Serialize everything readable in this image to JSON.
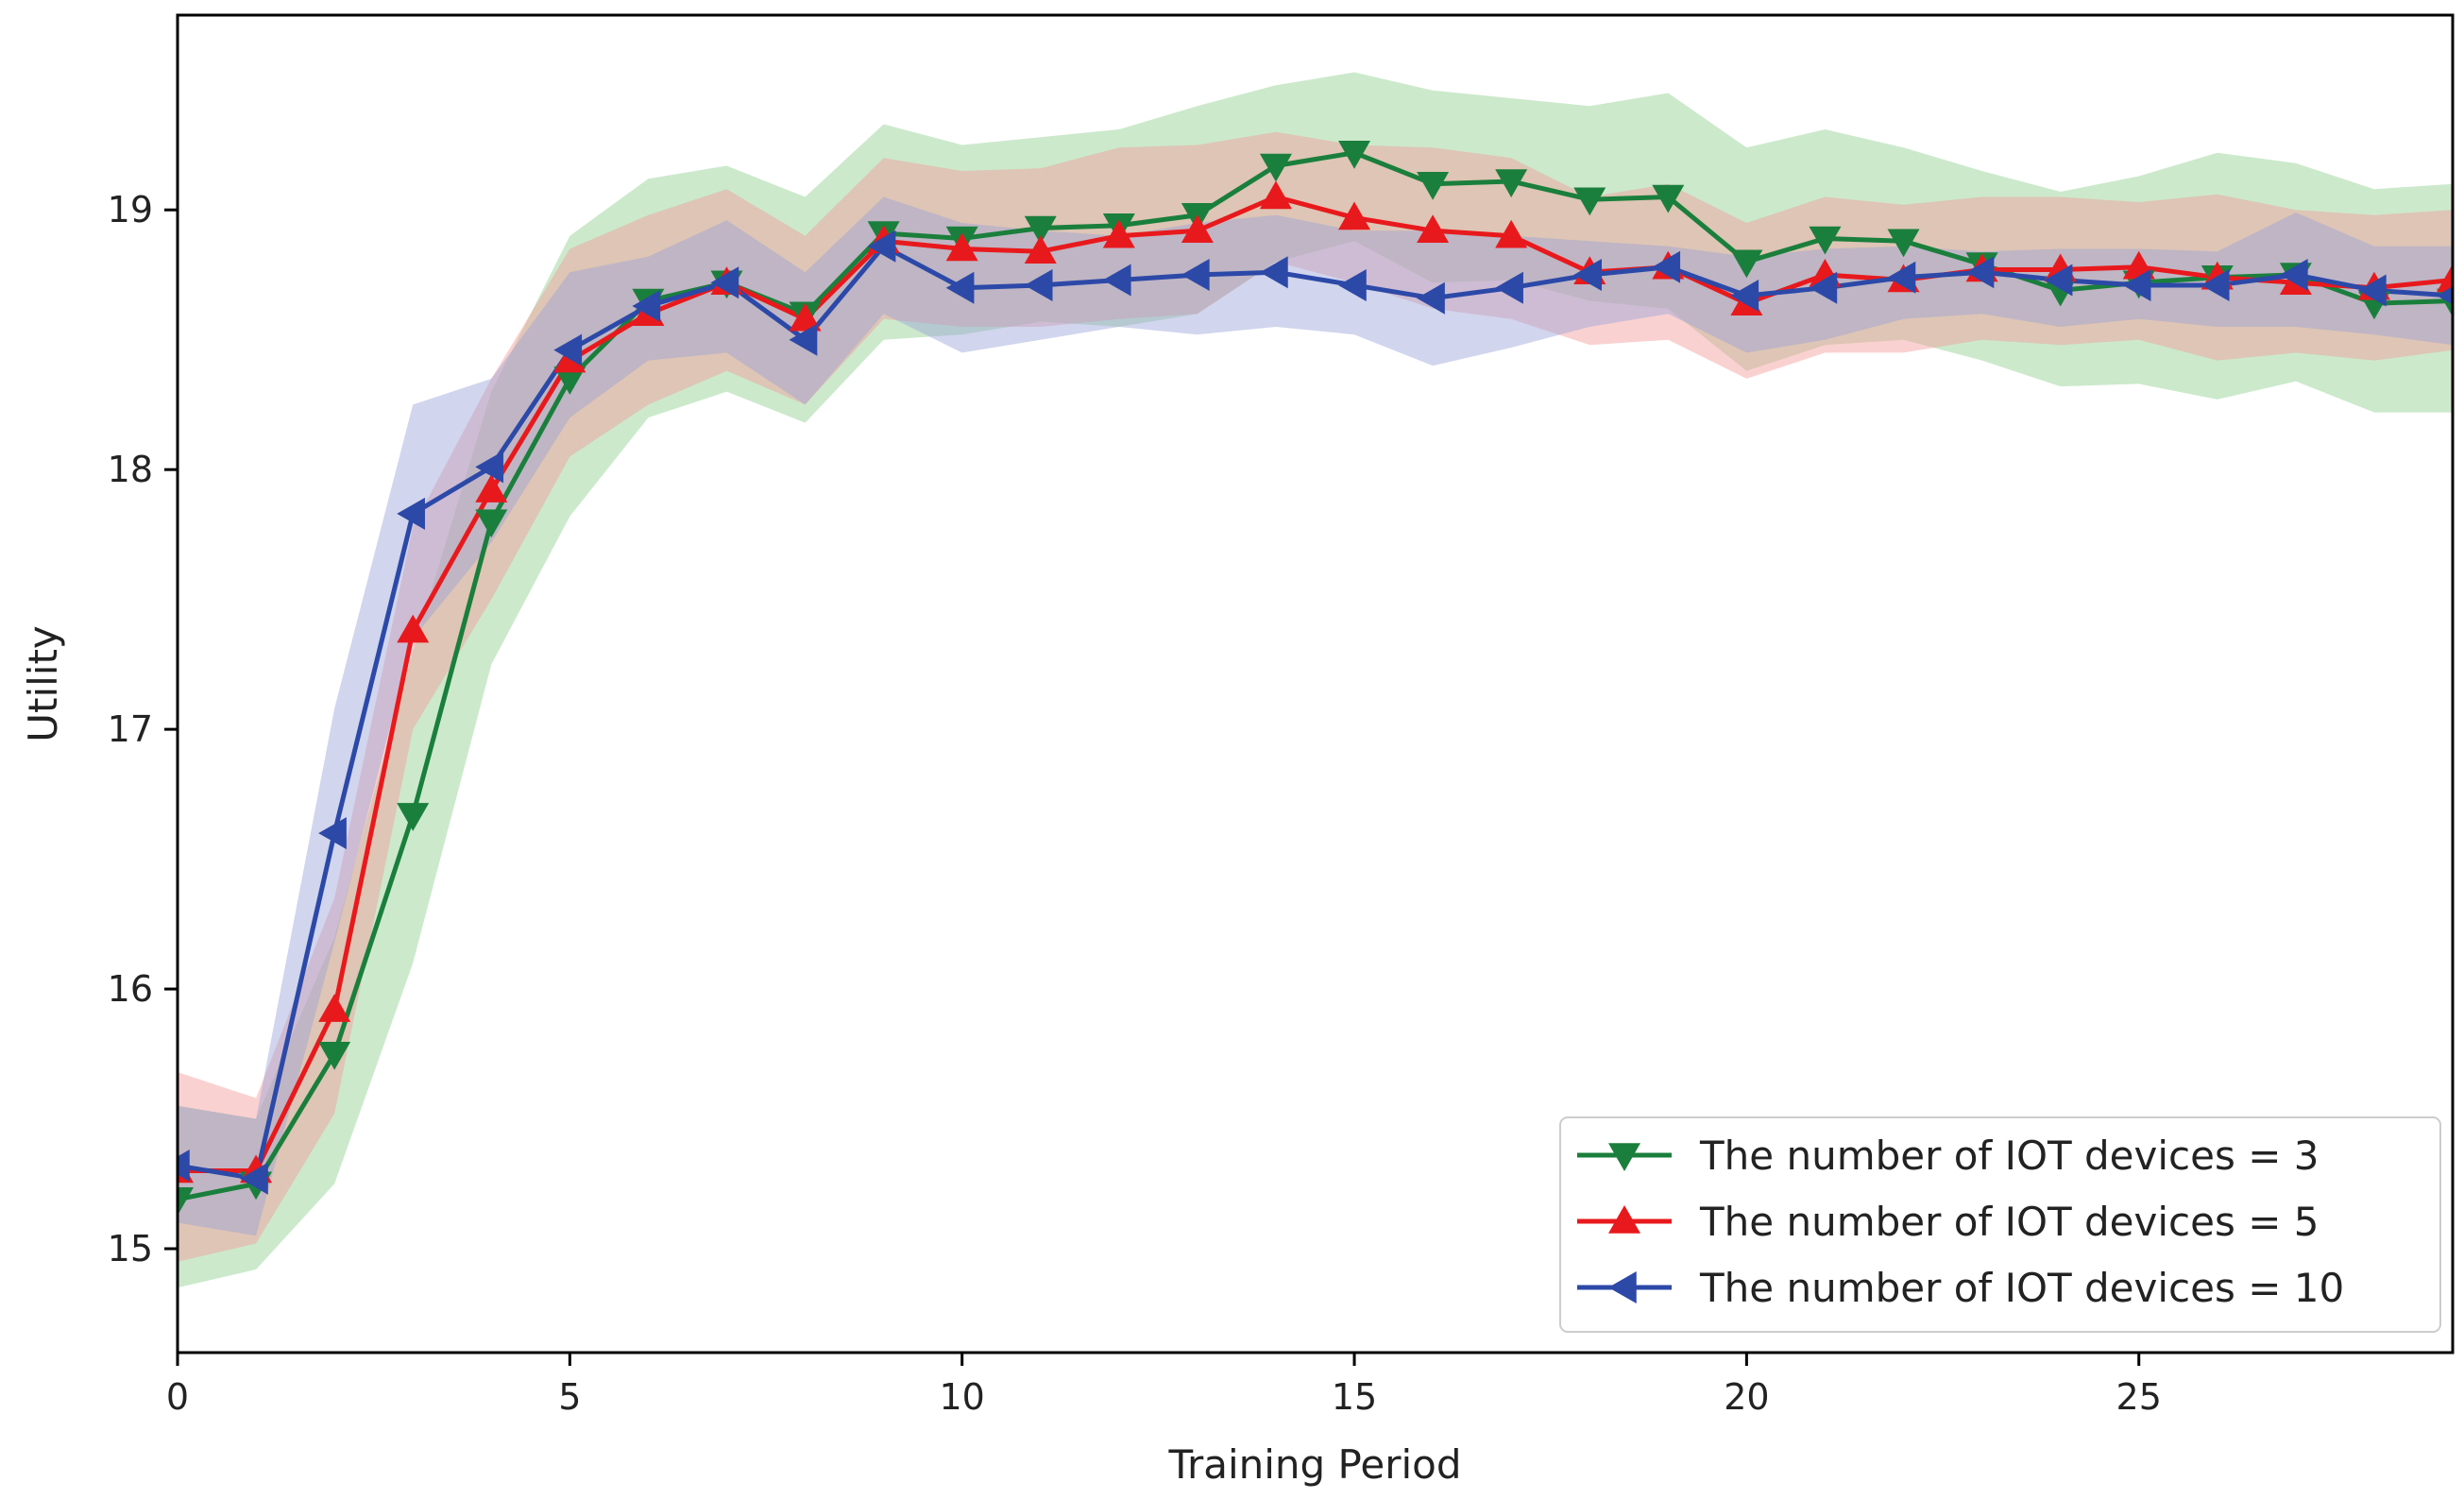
{
  "chart_data": {
    "type": "line",
    "title": "",
    "xlabel": "Training Period",
    "ylabel": "Utility",
    "xlim": [
      0,
      29
    ],
    "ylim": [
      14.6,
      19.75
    ],
    "xticks": [
      0,
      5,
      10,
      15,
      20,
      25
    ],
    "yticks": [
      15,
      16,
      17,
      18,
      19
    ],
    "legend_position": "bottom-right",
    "x": [
      0,
      1,
      2,
      3,
      4,
      5,
      6,
      7,
      8,
      9,
      10,
      11,
      12,
      13,
      14,
      15,
      16,
      17,
      18,
      19,
      20,
      21,
      22,
      23,
      24,
      25,
      26,
      27,
      28,
      29
    ],
    "series": [
      {
        "name": "The number of IOT devices = 3",
        "color": "#1a7f3c",
        "band_color": "#8fcf8f",
        "marker": "triangle-down",
        "values": [
          15.19,
          15.25,
          15.75,
          16.67,
          17.8,
          18.35,
          18.65,
          18.72,
          18.6,
          18.91,
          18.89,
          18.93,
          18.94,
          18.98,
          19.17,
          19.22,
          19.1,
          19.11,
          19.04,
          19.05,
          18.8,
          18.89,
          18.88,
          18.79,
          18.69,
          18.72,
          18.74,
          18.75,
          18.64,
          18.65
        ],
        "upper": [
          15.55,
          15.5,
          16.2,
          17.3,
          18.3,
          18.9,
          19.12,
          19.17,
          19.05,
          19.33,
          19.25,
          19.28,
          19.31,
          19.4,
          19.48,
          19.53,
          19.46,
          19.43,
          19.4,
          19.45,
          19.24,
          19.31,
          19.24,
          19.15,
          19.07,
          19.13,
          19.22,
          19.18,
          19.08,
          19.1
        ],
        "lower": [
          14.85,
          14.92,
          15.25,
          16.1,
          17.25,
          17.82,
          18.2,
          18.3,
          18.18,
          18.5,
          18.52,
          18.57,
          18.55,
          18.6,
          18.8,
          18.88,
          18.72,
          18.73,
          18.65,
          18.62,
          18.38,
          18.48,
          18.5,
          18.42,
          18.32,
          18.33,
          18.27,
          18.34,
          18.22,
          18.22
        ]
      },
      {
        "name": "The number of IOT devices = 5",
        "color": "#e8191c",
        "band_color": "#f49a9a",
        "marker": "triangle-up",
        "values": [
          15.3,
          15.3,
          15.92,
          17.38,
          17.92,
          18.42,
          18.6,
          18.72,
          18.58,
          18.88,
          18.85,
          18.84,
          18.9,
          18.92,
          19.05,
          18.97,
          18.92,
          18.9,
          18.76,
          18.78,
          18.64,
          18.75,
          18.73,
          18.77,
          18.77,
          18.78,
          18.74,
          18.72,
          18.7,
          18.73
        ],
        "upper": [
          15.68,
          15.58,
          16.35,
          17.78,
          18.35,
          18.85,
          18.98,
          19.08,
          18.9,
          19.2,
          19.15,
          19.16,
          19.24,
          19.25,
          19.3,
          19.25,
          19.24,
          19.2,
          19.05,
          19.1,
          18.95,
          19.05,
          19.02,
          19.05,
          19.05,
          19.03,
          19.06,
          19.0,
          18.98,
          19.0
        ],
        "lower": [
          14.95,
          15.02,
          15.52,
          17.0,
          17.5,
          18.05,
          18.25,
          18.38,
          18.25,
          18.58,
          18.55,
          18.55,
          18.58,
          18.6,
          18.8,
          18.72,
          18.62,
          18.58,
          18.48,
          18.5,
          18.35,
          18.45,
          18.45,
          18.5,
          18.48,
          18.5,
          18.42,
          18.45,
          18.42,
          18.46
        ]
      },
      {
        "name": "The number of IOT devices = 10",
        "color": "#2c49a8",
        "band_color": "#9aa2d8",
        "marker": "triangle-left",
        "values": [
          15.32,
          15.27,
          16.6,
          17.83,
          18.01,
          18.46,
          18.63,
          18.72,
          18.5,
          18.86,
          18.7,
          18.71,
          18.73,
          18.75,
          18.76,
          18.71,
          18.66,
          18.7,
          18.75,
          18.78,
          18.67,
          18.7,
          18.74,
          18.76,
          18.73,
          18.71,
          18.71,
          18.75,
          18.69,
          18.67
        ],
        "upper": [
          15.55,
          15.5,
          17.08,
          18.25,
          18.35,
          18.76,
          18.82,
          18.96,
          18.76,
          19.05,
          18.95,
          18.92,
          18.9,
          18.95,
          18.98,
          18.92,
          18.92,
          18.9,
          18.88,
          18.86,
          18.82,
          18.85,
          18.86,
          18.84,
          18.85,
          18.85,
          18.84,
          18.99,
          18.86,
          18.86
        ],
        "lower": [
          15.1,
          15.05,
          16.18,
          17.35,
          17.72,
          18.2,
          18.42,
          18.45,
          18.25,
          18.6,
          18.45,
          18.5,
          18.55,
          18.52,
          18.55,
          18.52,
          18.4,
          18.47,
          18.55,
          18.6,
          18.45,
          18.5,
          18.58,
          18.6,
          18.55,
          18.58,
          18.55,
          18.55,
          18.52,
          18.48
        ]
      }
    ]
  }
}
